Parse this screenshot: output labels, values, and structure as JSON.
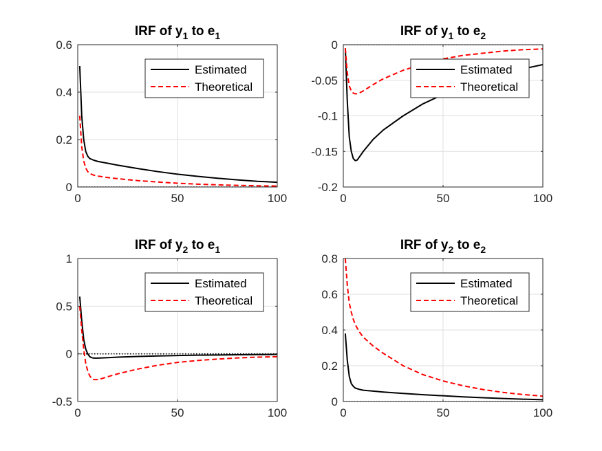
{
  "chart_data": [
    {
      "type": "line",
      "title": {
        "main": "IRF of y",
        "sub1": "1",
        "mid": " to e",
        "sub2": "1"
      },
      "xlim": [
        0,
        100
      ],
      "ylim": [
        0,
        0.6
      ],
      "xticks": [
        0,
        50,
        100
      ],
      "xtick_labels": [
        "0",
        "50",
        "100"
      ],
      "yticks": [
        0,
        0.2,
        0.4,
        0.6
      ],
      "ytick_labels": [
        "0",
        "0.2",
        "0.4",
        "0.6"
      ],
      "grid": true,
      "legend_position": "top-right",
      "zero_line": true,
      "series": [
        {
          "name": "Estimated",
          "color": "#000000",
          "style": "solid",
          "x": [
            1,
            2,
            3,
            4,
            5,
            6,
            8,
            10,
            15,
            20,
            30,
            40,
            50,
            60,
            70,
            80,
            90,
            100
          ],
          "y": [
            0.51,
            0.3,
            0.2,
            0.15,
            0.13,
            0.12,
            0.113,
            0.108,
            0.1,
            0.092,
            0.078,
            0.065,
            0.054,
            0.045,
            0.037,
            0.03,
            0.024,
            0.02
          ]
        },
        {
          "name": "Theoretical",
          "color": "#ff0000",
          "style": "dashed",
          "x": [
            1,
            2,
            3,
            4,
            5,
            6,
            8,
            10,
            15,
            20,
            30,
            40,
            50,
            60,
            70,
            80,
            90,
            100
          ],
          "y": [
            0.3,
            0.17,
            0.11,
            0.08,
            0.065,
            0.057,
            0.05,
            0.046,
            0.04,
            0.035,
            0.027,
            0.021,
            0.016,
            0.012,
            0.009,
            0.007,
            0.005,
            0.004
          ]
        }
      ]
    },
    {
      "type": "line",
      "title": {
        "main": "IRF of y",
        "sub1": "1",
        "mid": " to e",
        "sub2": "2"
      },
      "xlim": [
        0,
        100
      ],
      "ylim": [
        -0.2,
        0
      ],
      "xticks": [
        0,
        50,
        100
      ],
      "xtick_labels": [
        "0",
        "50",
        "100"
      ],
      "yticks": [
        -0.2,
        -0.15,
        -0.1,
        -0.05,
        0
      ],
      "ytick_labels": [
        "-0.2",
        "-0.15",
        "-0.1",
        "-0.05",
        "0"
      ],
      "grid": true,
      "legend_position": "top-right",
      "zero_line": true,
      "series": [
        {
          "name": "Estimated",
          "color": "#000000",
          "style": "solid",
          "x": [
            1,
            2,
            3,
            4,
            5,
            6,
            7,
            8,
            10,
            15,
            20,
            30,
            40,
            50,
            60,
            70,
            80,
            90,
            100
          ],
          "y": [
            -0.005,
            -0.08,
            -0.13,
            -0.15,
            -0.16,
            -0.163,
            -0.162,
            -0.158,
            -0.15,
            -0.133,
            -0.12,
            -0.1,
            -0.083,
            -0.07,
            -0.058,
            -0.048,
            -0.04,
            -0.034,
            -0.028
          ]
        },
        {
          "name": "Theoretical",
          "color": "#ff0000",
          "style": "dashed",
          "x": [
            1,
            2,
            3,
            4,
            5,
            6,
            7,
            8,
            10,
            15,
            20,
            30,
            40,
            50,
            60,
            70,
            80,
            90,
            100
          ],
          "y": [
            -0.005,
            -0.04,
            -0.058,
            -0.065,
            -0.068,
            -0.069,
            -0.069,
            -0.068,
            -0.065,
            -0.056,
            -0.048,
            -0.036,
            -0.027,
            -0.02,
            -0.015,
            -0.012,
            -0.009,
            -0.007,
            -0.006
          ]
        }
      ]
    },
    {
      "type": "line",
      "title": {
        "main": "IRF of y",
        "sub1": "2",
        "mid": " to e",
        "sub2": "1"
      },
      "xlim": [
        0,
        100
      ],
      "ylim": [
        -0.5,
        1
      ],
      "xticks": [
        0,
        50,
        100
      ],
      "xtick_labels": [
        "0",
        "50",
        "100"
      ],
      "yticks": [
        -0.5,
        0,
        0.5,
        1
      ],
      "ytick_labels": [
        "-0.5",
        "0",
        "0.5",
        "1"
      ],
      "grid": true,
      "legend_position": "top-right",
      "zero_line": true,
      "series": [
        {
          "name": "Estimated",
          "color": "#000000",
          "style": "solid",
          "x": [
            1,
            2,
            3,
            4,
            5,
            6,
            7,
            8,
            10,
            12,
            15,
            20,
            30,
            40,
            50,
            60,
            70,
            80,
            90,
            100
          ],
          "y": [
            0.6,
            0.35,
            0.15,
            0.05,
            0.0,
            -0.03,
            -0.04,
            -0.045,
            -0.045,
            -0.043,
            -0.04,
            -0.035,
            -0.028,
            -0.022,
            -0.018,
            -0.014,
            -0.012,
            -0.01,
            -0.008,
            -0.006
          ]
        },
        {
          "name": "Theoretical",
          "color": "#ff0000",
          "style": "dashed",
          "x": [
            1,
            2,
            3,
            4,
            5,
            6,
            7,
            8,
            10,
            12,
            15,
            20,
            30,
            40,
            50,
            60,
            70,
            80,
            90,
            100
          ],
          "y": [
            0.5,
            0.25,
            0.05,
            -0.1,
            -0.18,
            -0.23,
            -0.26,
            -0.27,
            -0.27,
            -0.26,
            -0.24,
            -0.21,
            -0.16,
            -0.12,
            -0.09,
            -0.07,
            -0.055,
            -0.043,
            -0.035,
            -0.03
          ]
        }
      ]
    },
    {
      "type": "line",
      "title": {
        "main": "IRF of y",
        "sub1": "2",
        "mid": " to e",
        "sub2": "2"
      },
      "xlim": [
        0,
        100
      ],
      "ylim": [
        0,
        0.8
      ],
      "xticks": [
        0,
        50,
        100
      ],
      "xtick_labels": [
        "0",
        "50",
        "100"
      ],
      "yticks": [
        0,
        0.2,
        0.4,
        0.6,
        0.8
      ],
      "ytick_labels": [
        "0",
        "0.2",
        "0.4",
        "0.6",
        "0.8"
      ],
      "grid": true,
      "legend_position": "top-right",
      "zero_line": true,
      "series": [
        {
          "name": "Estimated",
          "color": "#000000",
          "style": "solid",
          "x": [
            1,
            2,
            3,
            4,
            5,
            6,
            8,
            10,
            15,
            20,
            30,
            40,
            50,
            60,
            70,
            80,
            90,
            100
          ],
          "y": [
            0.38,
            0.23,
            0.14,
            0.1,
            0.085,
            0.075,
            0.068,
            0.063,
            0.058,
            0.053,
            0.045,
            0.038,
            0.032,
            0.026,
            0.021,
            0.017,
            0.013,
            0.01
          ]
        },
        {
          "name": "Theoretical",
          "color": "#ff0000",
          "style": "dashed",
          "x": [
            1,
            2,
            3,
            4,
            5,
            6,
            8,
            10,
            15,
            20,
            30,
            40,
            50,
            60,
            70,
            80,
            90,
            100
          ],
          "y": [
            0.8,
            0.65,
            0.55,
            0.5,
            0.46,
            0.43,
            0.39,
            0.36,
            0.31,
            0.27,
            0.2,
            0.15,
            0.115,
            0.088,
            0.067,
            0.051,
            0.039,
            0.03
          ]
        }
      ]
    }
  ]
}
